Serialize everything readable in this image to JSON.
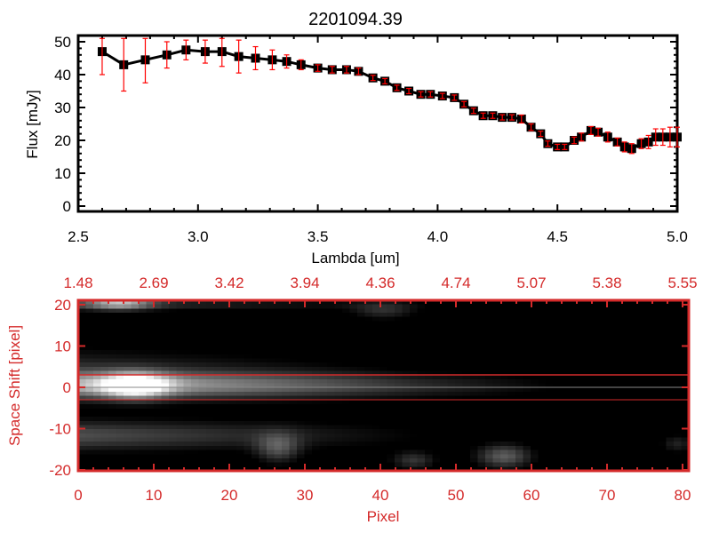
{
  "colors": {
    "axis_top": "#000000",
    "accent": "#d42a2a",
    "errorbar": "#ff0000",
    "marker": "#000000"
  },
  "chart_data": [
    {
      "type": "scatter",
      "title": "2201094.39",
      "xlabel": "Lambda [um]",
      "ylabel": "Flux [mJy]",
      "xlim": [
        2.5,
        5.0
      ],
      "ylim": [
        0,
        50
      ],
      "xticks": [
        "2.5",
        "3.0",
        "3.5",
        "4.0",
        "4.5",
        "5.0"
      ],
      "yticks": [
        "0",
        "10",
        "20",
        "30",
        "40",
        "50"
      ],
      "grid": false,
      "series": [
        {
          "name": "flux",
          "x": [
            2.6,
            2.69,
            2.78,
            2.87,
            2.95,
            3.03,
            3.1,
            3.17,
            3.24,
            3.31,
            3.37,
            3.43,
            3.5,
            3.56,
            3.62,
            3.67,
            3.73,
            3.78,
            3.83,
            3.88,
            3.93,
            3.97,
            4.02,
            4.07,
            4.11,
            4.15,
            4.19,
            4.23,
            4.27,
            4.31,
            4.35,
            4.39,
            4.43,
            4.46,
            4.5,
            4.53,
            4.57,
            4.6,
            4.64,
            4.67,
            4.71,
            4.75,
            4.78,
            4.81,
            4.85,
            4.88,
            4.91,
            4.94,
            4.97,
            5.0
          ],
          "y": [
            47,
            43,
            44.5,
            46,
            47.5,
            47,
            47,
            45.5,
            45,
            44.5,
            44,
            43,
            42,
            41.5,
            41.5,
            41,
            39,
            38,
            36,
            35,
            34,
            34,
            33.5,
            33,
            31,
            29,
            27.5,
            27.5,
            27,
            27,
            26.5,
            24,
            22,
            19,
            18,
            18,
            20,
            21,
            23,
            22.5,
            21,
            19.5,
            18,
            17.5,
            19,
            19.5,
            21,
            21,
            21,
            21
          ],
          "err": [
            7,
            8,
            7,
            4,
            3,
            3.5,
            4.5,
            5,
            3.5,
            3,
            2,
            1.5,
            1,
            1,
            1,
            1,
            0.8,
            0.8,
            0.8,
            0.8,
            0.8,
            0.8,
            0.8,
            0.8,
            0.8,
            0.8,
            0.8,
            0.8,
            0.8,
            0.8,
            1.2,
            1,
            0.8,
            0.8,
            0.8,
            0.8,
            1,
            1.2,
            1.2,
            1.2,
            1.5,
            1.2,
            1.5,
            1.5,
            1.5,
            2,
            2.5,
            2.5,
            3,
            3
          ]
        }
      ]
    },
    {
      "type": "heatmap",
      "xlabel": "Pixel",
      "ylabel": "Space Shift [pixel]",
      "xlim": [
        0,
        80
      ],
      "ylim": [
        -20,
        20
      ],
      "xticks": [
        "0",
        "10",
        "20",
        "30",
        "40",
        "50",
        "60",
        "70",
        "80"
      ],
      "yticks": [
        "-20",
        "-10",
        "0",
        "10",
        "20"
      ],
      "top_xticks": [
        "1.48",
        "2.69",
        "3.42",
        "3.94",
        "4.36",
        "4.74",
        "5.07",
        "5.38",
        "5.55"
      ],
      "extraction_aperture": [
        -3,
        3
      ],
      "center_line": 0
    }
  ]
}
